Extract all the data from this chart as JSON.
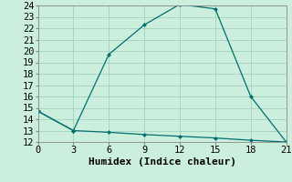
{
  "xlabel": "Humidex (Indice chaleur)",
  "background_color": "#cceedd",
  "line_color": "#007070",
  "grid_color": "#99ccbb",
  "xlim": [
    0,
    21
  ],
  "ylim": [
    12,
    24
  ],
  "xticks": [
    0,
    3,
    6,
    9,
    12,
    15,
    18,
    21
  ],
  "yticks": [
    12,
    13,
    14,
    15,
    16,
    17,
    18,
    19,
    20,
    21,
    22,
    23,
    24
  ],
  "series1_x": [
    0,
    3,
    6,
    9,
    12,
    15,
    18,
    21
  ],
  "series1_y": [
    14.7,
    13.0,
    19.7,
    22.3,
    24.1,
    23.7,
    16.0,
    12.0
  ],
  "series2_x": [
    0,
    3,
    6,
    9,
    12,
    15,
    18,
    21
  ],
  "series2_y": [
    14.7,
    13.0,
    12.85,
    12.65,
    12.5,
    12.35,
    12.15,
    12.0
  ],
  "fontsize": 7.5,
  "xlabel_fontsize": 8
}
